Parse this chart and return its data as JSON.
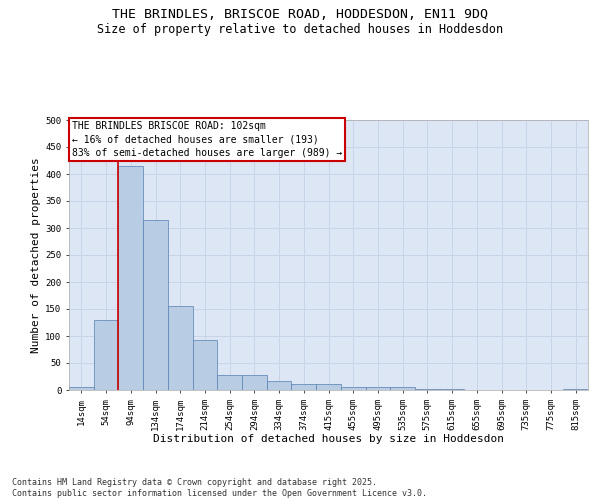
{
  "title_line1": "THE BRINDLES, BRISCOE ROAD, HODDESDON, EN11 9DQ",
  "title_line2": "Size of property relative to detached houses in Hoddesdon",
  "xlabel": "Distribution of detached houses by size in Hoddesdon",
  "ylabel": "Number of detached properties",
  "categories": [
    "14sqm",
    "54sqm",
    "94sqm",
    "134sqm",
    "174sqm",
    "214sqm",
    "254sqm",
    "294sqm",
    "334sqm",
    "374sqm",
    "415sqm",
    "455sqm",
    "495sqm",
    "535sqm",
    "575sqm",
    "615sqm",
    "655sqm",
    "695sqm",
    "735sqm",
    "775sqm",
    "815sqm"
  ],
  "values": [
    5,
    130,
    415,
    315,
    155,
    93,
    28,
    28,
    16,
    12,
    12,
    5,
    6,
    6,
    2,
    1,
    0,
    0,
    0,
    0,
    1
  ],
  "bar_color": "#b8cce4",
  "bar_edge_color": "#5580b0",
  "annotation_text_line1": "THE BRINDLES BRISCOE ROAD: 102sqm",
  "annotation_text_line2": "← 16% of detached houses are smaller (193)",
  "annotation_text_line3": "83% of semi-detached houses are larger (989) →",
  "annotation_box_color": "#ffffff",
  "annotation_box_edge": "#cc0000",
  "vline_color": "#cc0000",
  "vline_x_index": 2,
  "ylim": [
    0,
    500
  ],
  "yticks": [
    0,
    50,
    100,
    150,
    200,
    250,
    300,
    350,
    400,
    450,
    500
  ],
  "grid_color": "#c8d4e8",
  "background_color": "#dce6f5",
  "footnote_line1": "Contains HM Land Registry data © Crown copyright and database right 2025.",
  "footnote_line2": "Contains public sector information licensed under the Open Government Licence v3.0.",
  "title_fontsize": 9.5,
  "subtitle_fontsize": 8.5,
  "axis_label_fontsize": 8,
  "tick_fontsize": 6.5,
  "annotation_fontsize": 7,
  "footnote_fontsize": 6
}
